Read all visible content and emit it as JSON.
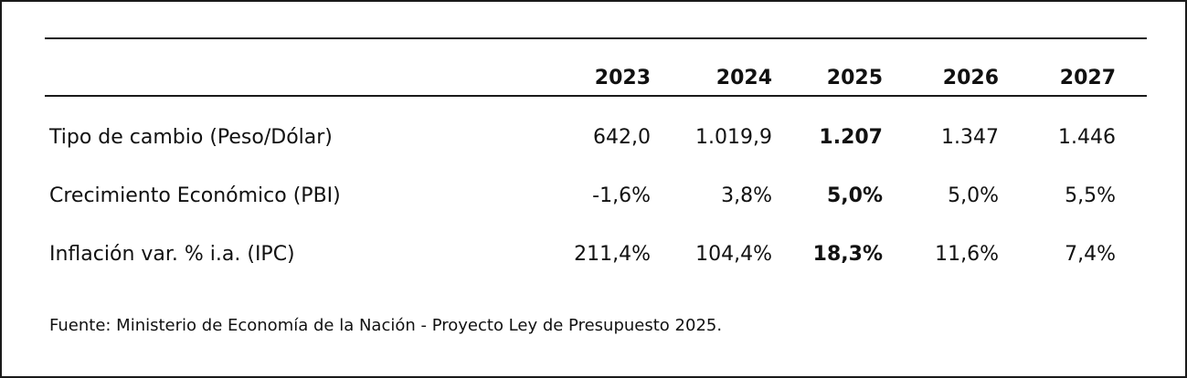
{
  "table": {
    "headers": [
      "2023",
      "2024",
      "2025",
      "2026",
      "2027"
    ],
    "rows": [
      {
        "label": "Tipo de cambio (Peso/Dólar)",
        "values": [
          "642,0",
          "1.019,9",
          "1.207",
          "1.347",
          "1.446"
        ]
      },
      {
        "label": "Crecimiento Económico (PBI)",
        "values": [
          "-1,6%",
          "3,8%",
          "5,0%",
          "5,0%",
          "5,5%"
        ]
      },
      {
        "label": "Inflación var. % i.a. (IPC)",
        "values": [
          "211,4%",
          "104,4%",
          "18,3%",
          "11,6%",
          "7,4%"
        ]
      }
    ]
  },
  "source": "Fuente: Ministerio de Economía de la Nación - Proyecto Ley de Presupuesto 2025."
}
